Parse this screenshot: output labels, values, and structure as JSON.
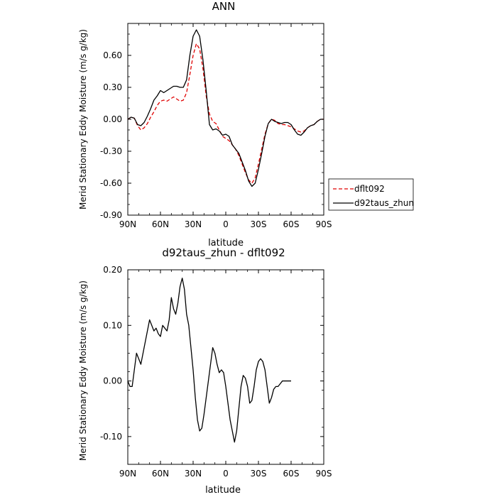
{
  "chart_data": [
    {
      "type": "line",
      "title": "ANN",
      "xlabel": "latitude",
      "ylabel": "Merid Stationary Eddy Moisture (m/s g/kg)",
      "x_ticks": [
        90,
        60,
        30,
        0,
        -30,
        -60,
        -90
      ],
      "x_tick_labels": [
        "90N",
        "60N",
        "30N",
        "0",
        "30S",
        "60S",
        "90S"
      ],
      "y_ticks": [
        0.6,
        0.3,
        0.0,
        -0.3,
        -0.6,
        -0.9
      ],
      "y_tick_labels": [
        "0.60",
        "0.30",
        "0.00",
        "-0.30",
        "-0.60",
        "-0.90"
      ],
      "xlim": [
        90,
        -90
      ],
      "ylim": [
        -0.9,
        0.9
      ],
      "legend_position": "right",
      "series": [
        {
          "name": "dflt092",
          "color": "#e00000",
          "dash": "dashed",
          "points": [
            [
              90,
              0.0
            ],
            [
              87,
              0.02
            ],
            [
              84,
              0.01
            ],
            [
              81,
              -0.06
            ],
            [
              78,
              -0.1
            ],
            [
              75,
              -0.08
            ],
            [
              72,
              -0.04
            ],
            [
              69,
              0.02
            ],
            [
              66,
              0.07
            ],
            [
              63,
              0.13
            ],
            [
              60,
              0.17
            ],
            [
              57,
              0.18
            ],
            [
              54,
              0.17
            ],
            [
              51,
              0.19
            ],
            [
              48,
              0.21
            ],
            [
              45,
              0.19
            ],
            [
              42,
              0.17
            ],
            [
              39,
              0.18
            ],
            [
              36,
              0.25
            ],
            [
              33,
              0.42
            ],
            [
              30,
              0.6
            ],
            [
              27,
              0.71
            ],
            [
              24,
              0.66
            ],
            [
              21,
              0.48
            ],
            [
              18,
              0.22
            ],
            [
              15,
              0.05
            ],
            [
              12,
              -0.02
            ],
            [
              9,
              -0.04
            ],
            [
              6,
              -0.1
            ],
            [
              3,
              -0.16
            ],
            [
              0,
              -0.18
            ],
            [
              -3,
              -0.2
            ],
            [
              -6,
              -0.24
            ],
            [
              -9,
              -0.28
            ],
            [
              -12,
              -0.34
            ],
            [
              -15,
              -0.42
            ],
            [
              -18,
              -0.5
            ],
            [
              -21,
              -0.57
            ],
            [
              -24,
              -0.6
            ],
            [
              -27,
              -0.55
            ],
            [
              -30,
              -0.42
            ],
            [
              -33,
              -0.28
            ],
            [
              -36,
              -0.14
            ],
            [
              -39,
              -0.04
            ],
            [
              -42,
              0.0
            ],
            [
              -45,
              -0.01
            ],
            [
              -48,
              -0.04
            ],
            [
              -51,
              -0.05
            ],
            [
              -54,
              -0.05
            ],
            [
              -57,
              -0.06
            ],
            [
              -60,
              -0.07
            ],
            [
              -63,
              -0.09
            ],
            [
              -66,
              -0.11
            ],
            [
              -69,
              -0.12
            ],
            [
              -72,
              -0.11
            ],
            [
              -75,
              -0.08
            ],
            [
              -78,
              -0.06
            ],
            [
              -81,
              -0.05
            ],
            [
              -84,
              -0.02
            ],
            [
              -87,
              0.0
            ],
            [
              -90,
              0.0
            ]
          ]
        },
        {
          "name": "d92taus_zhun",
          "color": "#000000",
          "dash": "solid",
          "points": [
            [
              90,
              0.0
            ],
            [
              87,
              0.02
            ],
            [
              84,
              0.01
            ],
            [
              81,
              -0.05
            ],
            [
              78,
              -0.06
            ],
            [
              75,
              -0.03
            ],
            [
              72,
              0.03
            ],
            [
              69,
              0.1
            ],
            [
              66,
              0.18
            ],
            [
              63,
              0.22
            ],
            [
              60,
              0.27
            ],
            [
              57,
              0.25
            ],
            [
              54,
              0.27
            ],
            [
              51,
              0.29
            ],
            [
              48,
              0.31
            ],
            [
              45,
              0.31
            ],
            [
              42,
              0.3
            ],
            [
              39,
              0.3
            ],
            [
              36,
              0.37
            ],
            [
              33,
              0.6
            ],
            [
              30,
              0.78
            ],
            [
              27,
              0.84
            ],
            [
              24,
              0.78
            ],
            [
              21,
              0.56
            ],
            [
              18,
              0.27
            ],
            [
              15,
              -0.05
            ],
            [
              12,
              -0.1
            ],
            [
              9,
              -0.09
            ],
            [
              6,
              -0.11
            ],
            [
              3,
              -0.15
            ],
            [
              0,
              -0.14
            ],
            [
              -3,
              -0.16
            ],
            [
              -6,
              -0.24
            ],
            [
              -9,
              -0.28
            ],
            [
              -12,
              -0.32
            ],
            [
              -15,
              -0.4
            ],
            [
              -18,
              -0.48
            ],
            [
              -21,
              -0.58
            ],
            [
              -24,
              -0.63
            ],
            [
              -27,
              -0.6
            ],
            [
              -30,
              -0.47
            ],
            [
              -33,
              -0.32
            ],
            [
              -36,
              -0.16
            ],
            [
              -39,
              -0.04
            ],
            [
              -42,
              0.0
            ],
            [
              -45,
              -0.02
            ],
            [
              -48,
              -0.03
            ],
            [
              -51,
              -0.04
            ],
            [
              -54,
              -0.03
            ],
            [
              -57,
              -0.03
            ],
            [
              -60,
              -0.05
            ],
            [
              -63,
              -0.1
            ],
            [
              -66,
              -0.14
            ],
            [
              -69,
              -0.15
            ],
            [
              -72,
              -0.12
            ],
            [
              -75,
              -0.08
            ],
            [
              -78,
              -0.06
            ],
            [
              -81,
              -0.05
            ],
            [
              -84,
              -0.02
            ],
            [
              -87,
              0.0
            ],
            [
              -90,
              0.0
            ]
          ]
        }
      ]
    },
    {
      "type": "line",
      "title": "d92taus_zhun - dflt092",
      "xlabel": "latitude",
      "ylabel": "Merid Stationary Eddy Moisture (m/s g/kg)",
      "x_ticks": [
        90,
        60,
        30,
        0,
        -30,
        -60,
        -90
      ],
      "x_tick_labels": [
        "90N",
        "60N",
        "30N",
        "0",
        "30S",
        "60S",
        "90S"
      ],
      "y_ticks": [
        0.2,
        0.1,
        0.0,
        -0.1
      ],
      "y_tick_labels": [
        "0.20",
        "0.10",
        "0.00",
        "-0.10"
      ],
      "xlim": [
        90,
        -90
      ],
      "ylim": [
        -0.15,
        0.2
      ],
      "series": [
        {
          "color": "#000000",
          "dash": "solid",
          "points": [
            [
              90,
              0.0
            ],
            [
              88,
              -0.01
            ],
            [
              86,
              -0.01
            ],
            [
              84,
              0.02
            ],
            [
              82,
              0.05
            ],
            [
              80,
              0.04
            ],
            [
              78,
              0.03
            ],
            [
              76,
              0.05
            ],
            [
              74,
              0.07
            ],
            [
              72,
              0.09
            ],
            [
              70,
              0.11
            ],
            [
              68,
              0.1
            ],
            [
              66,
              0.09
            ],
            [
              64,
              0.095
            ],
            [
              62,
              0.085
            ],
            [
              60,
              0.08
            ],
            [
              58,
              0.1
            ],
            [
              56,
              0.095
            ],
            [
              54,
              0.09
            ],
            [
              52,
              0.11
            ],
            [
              50,
              0.15
            ],
            [
              48,
              0.13
            ],
            [
              46,
              0.12
            ],
            [
              44,
              0.14
            ],
            [
              42,
              0.17
            ],
            [
              40,
              0.185
            ],
            [
              38,
              0.165
            ],
            [
              36,
              0.12
            ],
            [
              34,
              0.1
            ],
            [
              32,
              0.06
            ],
            [
              30,
              0.02
            ],
            [
              28,
              -0.03
            ],
            [
              26,
              -0.07
            ],
            [
              24,
              -0.09
            ],
            [
              22,
              -0.085
            ],
            [
              20,
              -0.06
            ],
            [
              18,
              -0.03
            ],
            [
              16,
              0.0
            ],
            [
              14,
              0.03
            ],
            [
              12,
              0.06
            ],
            [
              10,
              0.05
            ],
            [
              8,
              0.03
            ],
            [
              6,
              0.015
            ],
            [
              4,
              0.02
            ],
            [
              2,
              0.015
            ],
            [
              0,
              -0.01
            ],
            [
              -2,
              -0.04
            ],
            [
              -4,
              -0.07
            ],
            [
              -6,
              -0.09
            ],
            [
              -8,
              -0.11
            ],
            [
              -10,
              -0.09
            ],
            [
              -12,
              -0.05
            ],
            [
              -14,
              -0.01
            ],
            [
              -16,
              0.01
            ],
            [
              -18,
              0.005
            ],
            [
              -20,
              -0.01
            ],
            [
              -22,
              -0.04
            ],
            [
              -24,
              -0.035
            ],
            [
              -26,
              -0.01
            ],
            [
              -28,
              0.02
            ],
            [
              -30,
              0.035
            ],
            [
              -32,
              0.04
            ],
            [
              -34,
              0.035
            ],
            [
              -36,
              0.02
            ],
            [
              -38,
              -0.01
            ],
            [
              -40,
              -0.04
            ],
            [
              -42,
              -0.03
            ],
            [
              -44,
              -0.015
            ],
            [
              -46,
              -0.01
            ],
            [
              -48,
              -0.01
            ],
            [
              -50,
              -0.005
            ],
            [
              -52,
              0.0
            ],
            [
              -54,
              0.0
            ],
            [
              -56,
              0.0
            ],
            [
              -58,
              0.0
            ],
            [
              -60,
              0.0
            ]
          ]
        }
      ]
    }
  ]
}
